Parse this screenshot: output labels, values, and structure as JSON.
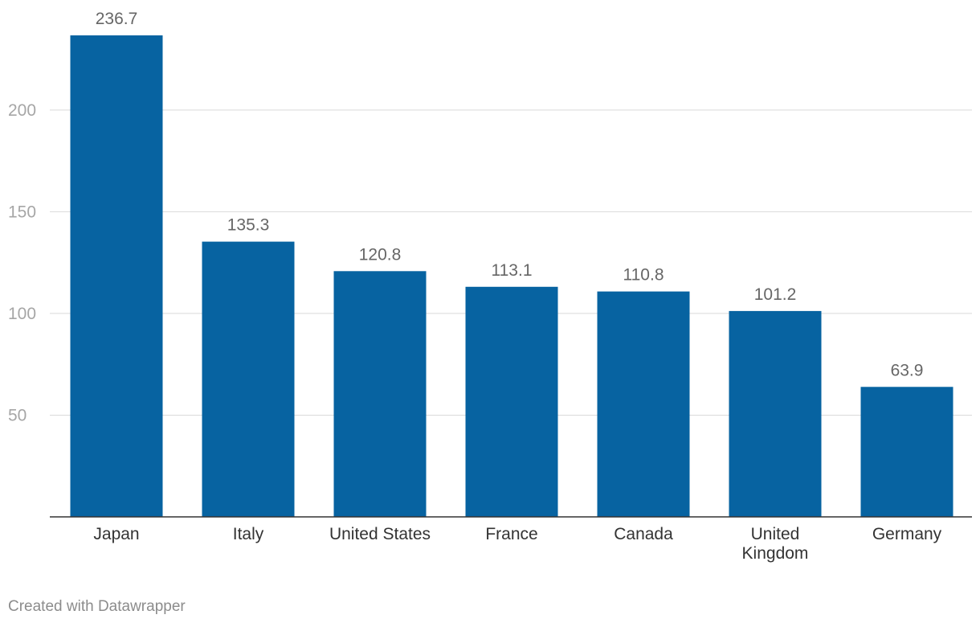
{
  "chart_data": {
    "type": "bar",
    "title": "",
    "xlabel": "",
    "ylabel": "",
    "categories": [
      "Japan",
      "Italy",
      "United States",
      "France",
      "Canada",
      "United Kingdom",
      "Germany"
    ],
    "category_lines": [
      [
        "Japan"
      ],
      [
        "Italy"
      ],
      [
        "United States"
      ],
      [
        "France"
      ],
      [
        "Canada"
      ],
      [
        "United",
        "Kingdom"
      ],
      [
        "Germany"
      ]
    ],
    "values": [
      236.7,
      135.3,
      120.8,
      113.1,
      110.8,
      101.2,
      63.9
    ],
    "value_labels": [
      "236.7",
      "135.3",
      "120.8",
      "113.1",
      "110.8",
      "101.2",
      "63.9"
    ],
    "yticks": [
      50,
      100,
      150,
      200
    ],
    "ylim": [
      0,
      236.7
    ],
    "grid": true,
    "bar_color": "#0763a1"
  },
  "footer": {
    "credit": "Created with Datawrapper"
  }
}
